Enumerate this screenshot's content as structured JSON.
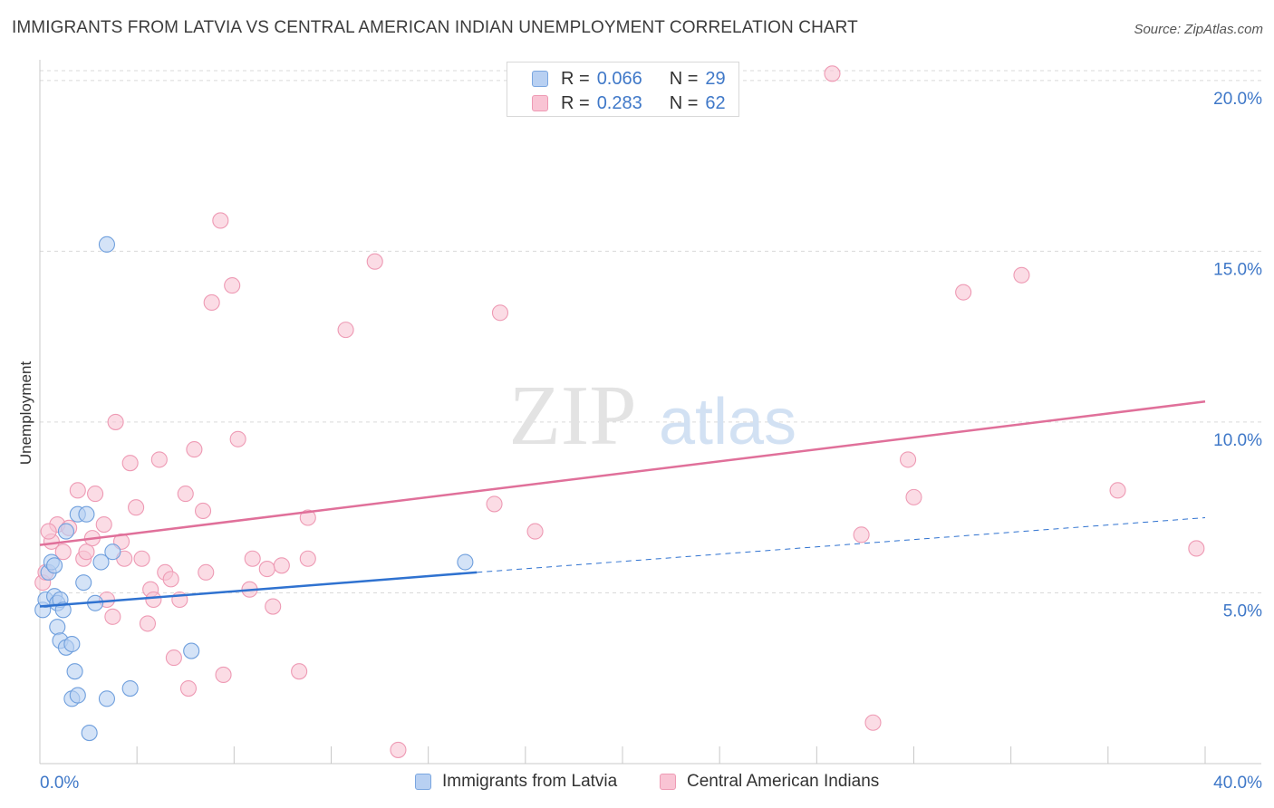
{
  "header": {
    "title": "IMMIGRANTS FROM LATVIA VS CENTRAL AMERICAN INDIAN UNEMPLOYMENT CORRELATION CHART",
    "source": "Source: ZipAtlas.com"
  },
  "watermark": {
    "zip": "ZIP",
    "atlas": "atlas"
  },
  "legend": {
    "r_label": "R =",
    "n_label": "N =",
    "entries": [
      {
        "r": "0.066",
        "n": "29",
        "fill": "#b8d0f2",
        "stroke": "#7aa6e0"
      },
      {
        "r": "0.283",
        "n": "62",
        "fill": "#f9c4d4",
        "stroke": "#ee9ab4"
      }
    ]
  },
  "colors": {
    "blue_fill": "#b8d0f2",
    "blue_stroke": "#6f9fdd",
    "blue_line": "#2f72d0",
    "pink_fill": "#f9c4d4",
    "pink_stroke": "#ee9ab4",
    "pink_line": "#e0709a",
    "tick_label": "#3f78c8",
    "grid": "#d9d9d9"
  },
  "chart_data": {
    "type": "scatter",
    "title": "IMMIGRANTS FROM LATVIA VS CENTRAL AMERICAN INDIAN UNEMPLOYMENT CORRELATION CHART",
    "xlabel": "",
    "ylabel": "Unemployment",
    "xlim": [
      0,
      40
    ],
    "ylim": [
      0,
      20.5
    ],
    "x_tick_labels": [
      "0.0%",
      "40.0%"
    ],
    "y_ticks": [
      5,
      10,
      15,
      20
    ],
    "y_tick_labels": [
      "5.0%",
      "10.0%",
      "15.0%",
      "20.0%"
    ],
    "grid": true,
    "legend_position": "top-center",
    "series": [
      {
        "name": "Immigrants from Latvia",
        "r": 0.066,
        "n": 29,
        "trend": {
          "x": [
            0,
            15,
            40
          ],
          "y": [
            4.6,
            5.6,
            7.2
          ],
          "solid_until": 15
        },
        "points": [
          {
            "x": 0.1,
            "y": 4.5
          },
          {
            "x": 0.2,
            "y": 4.8
          },
          {
            "x": 0.3,
            "y": 5.6
          },
          {
            "x": 0.4,
            "y": 5.9
          },
          {
            "x": 0.5,
            "y": 4.9
          },
          {
            "x": 0.6,
            "y": 4.7
          },
          {
            "x": 0.5,
            "y": 5.8
          },
          {
            "x": 0.7,
            "y": 4.8
          },
          {
            "x": 0.6,
            "y": 4.0
          },
          {
            "x": 0.7,
            "y": 3.6
          },
          {
            "x": 0.8,
            "y": 4.5
          },
          {
            "x": 0.9,
            "y": 3.4
          },
          {
            "x": 0.9,
            "y": 6.8
          },
          {
            "x": 1.1,
            "y": 3.5
          },
          {
            "x": 1.2,
            "y": 2.7
          },
          {
            "x": 1.1,
            "y": 1.9
          },
          {
            "x": 1.3,
            "y": 2.0
          },
          {
            "x": 1.5,
            "y": 5.3
          },
          {
            "x": 1.3,
            "y": 7.3
          },
          {
            "x": 1.6,
            "y": 7.3
          },
          {
            "x": 1.7,
            "y": 0.9
          },
          {
            "x": 1.9,
            "y": 4.7
          },
          {
            "x": 2.1,
            "y": 5.9
          },
          {
            "x": 2.3,
            "y": 15.2
          },
          {
            "x": 2.3,
            "y": 1.9
          },
          {
            "x": 2.5,
            "y": 6.2
          },
          {
            "x": 3.1,
            "y": 2.2
          },
          {
            "x": 5.2,
            "y": 3.3
          },
          {
            "x": 14.6,
            "y": 5.9
          }
        ]
      },
      {
        "name": "Central American Indians",
        "r": 0.283,
        "n": 62,
        "trend": {
          "x": [
            0,
            40
          ],
          "y": [
            6.4,
            10.6
          ]
        },
        "points": [
          {
            "x": 0.1,
            "y": 5.3
          },
          {
            "x": 0.2,
            "y": 5.6
          },
          {
            "x": 0.4,
            "y": 6.5
          },
          {
            "x": 0.6,
            "y": 7.0
          },
          {
            "x": 0.8,
            "y": 6.2
          },
          {
            "x": 1.0,
            "y": 6.9
          },
          {
            "x": 1.3,
            "y": 8.0
          },
          {
            "x": 1.5,
            "y": 6.0
          },
          {
            "x": 1.6,
            "y": 6.2
          },
          {
            "x": 1.8,
            "y": 6.6
          },
          {
            "x": 1.9,
            "y": 7.9
          },
          {
            "x": 2.2,
            "y": 7.0
          },
          {
            "x": 2.3,
            "y": 4.8
          },
          {
            "x": 2.5,
            "y": 4.3
          },
          {
            "x": 2.6,
            "y": 10.0
          },
          {
            "x": 2.8,
            "y": 6.5
          },
          {
            "x": 2.9,
            "y": 6.0
          },
          {
            "x": 3.1,
            "y": 8.8
          },
          {
            "x": 3.3,
            "y": 7.5
          },
          {
            "x": 3.5,
            "y": 6.0
          },
          {
            "x": 3.7,
            "y": 4.1
          },
          {
            "x": 3.8,
            "y": 5.1
          },
          {
            "x": 3.9,
            "y": 4.8
          },
          {
            "x": 4.1,
            "y": 8.9
          },
          {
            "x": 4.3,
            "y": 5.6
          },
          {
            "x": 4.5,
            "y": 5.4
          },
          {
            "x": 4.6,
            "y": 3.1
          },
          {
            "x": 4.8,
            "y": 4.8
          },
          {
            "x": 5.0,
            "y": 7.9
          },
          {
            "x": 5.1,
            "y": 2.2
          },
          {
            "x": 5.3,
            "y": 9.2
          },
          {
            "x": 5.6,
            "y": 7.4
          },
          {
            "x": 5.7,
            "y": 5.6
          },
          {
            "x": 5.9,
            "y": 13.5
          },
          {
            "x": 6.2,
            "y": 15.9
          },
          {
            "x": 6.3,
            "y": 2.6
          },
          {
            "x": 6.6,
            "y": 14.0
          },
          {
            "x": 6.8,
            "y": 9.5
          },
          {
            "x": 7.2,
            "y": 5.1
          },
          {
            "x": 7.3,
            "y": 6.0
          },
          {
            "x": 7.8,
            "y": 5.7
          },
          {
            "x": 8.0,
            "y": 4.6
          },
          {
            "x": 8.3,
            "y": 5.8
          },
          {
            "x": 8.9,
            "y": 2.7
          },
          {
            "x": 9.2,
            "y": 7.2
          },
          {
            "x": 9.2,
            "y": 6.0
          },
          {
            "x": 10.5,
            "y": 12.7
          },
          {
            "x": 11.5,
            "y": 14.7
          },
          {
            "x": 12.3,
            "y": 0.4
          },
          {
            "x": 15.6,
            "y": 7.6
          },
          {
            "x": 15.8,
            "y": 13.2
          },
          {
            "x": 17.0,
            "y": 6.8
          },
          {
            "x": 27.2,
            "y": 20.2
          },
          {
            "x": 28.2,
            "y": 6.7
          },
          {
            "x": 28.6,
            "y": 1.2
          },
          {
            "x": 29.8,
            "y": 8.9
          },
          {
            "x": 30.0,
            "y": 7.8
          },
          {
            "x": 31.7,
            "y": 13.8
          },
          {
            "x": 33.7,
            "y": 14.3
          },
          {
            "x": 37.0,
            "y": 8.0
          },
          {
            "x": 39.7,
            "y": 6.3
          },
          {
            "x": 0.3,
            "y": 6.8
          }
        ]
      }
    ]
  }
}
